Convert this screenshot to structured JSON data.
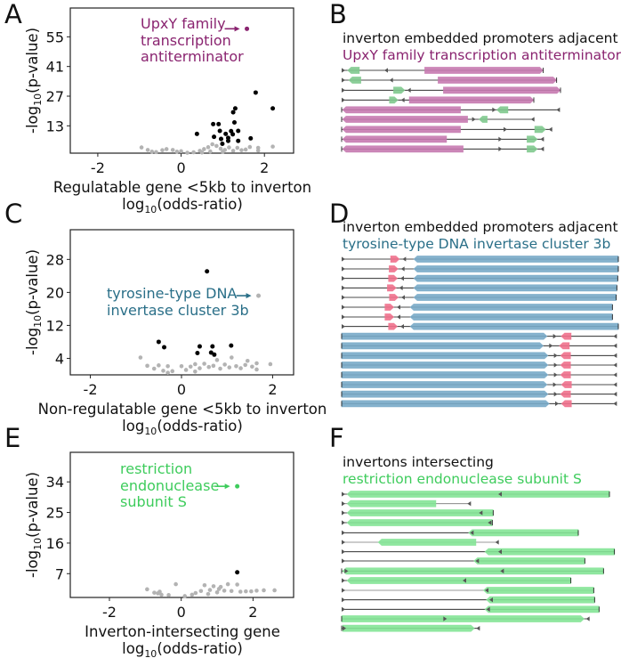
{
  "panel_labels": {
    "A": "A",
    "B": "B",
    "C": "C",
    "D": "D",
    "E": "E",
    "F": "F"
  },
  "colors": {
    "significant": "#000000",
    "nonsignificant": "#b3b3b3",
    "upxy": "#8a2470",
    "invertase": "#2a6f88",
    "restriction": "#3ecc5c",
    "pink_gene": "#c67ab0",
    "blue_gene": "#78aac8",
    "red_gene": "#f0708c",
    "green_gene": "#80c98e",
    "bright_green_gene": "#84e496",
    "promoter": "#555555"
  },
  "chart_data": [
    {
      "panel": "A",
      "type": "scatter",
      "ylabel": [
        "-log",
        "10",
        "(p-value)"
      ],
      "xlabel": [
        "Regulatable gene <5kb to inverton"
      ],
      "xlabel2": [
        "log",
        "10",
        "(odds-ratio)"
      ],
      "xlim": [
        -2.66,
        2.7
      ],
      "ylim": [
        0.1,
        68.6
      ],
      "xticks": [
        -2,
        0,
        2
      ],
      "yticks": [
        13,
        27,
        41,
        55
      ],
      "grid": false,
      "series": [
        {
          "color": "#000000",
          "points": [
            [
              2.2,
              21.2
            ],
            [
              1.79,
              28.7
            ],
            [
              1.3,
              21.2
            ],
            [
              1.25,
              19.4
            ],
            [
              1.28,
              14.6
            ],
            [
              0.77,
              13.8
            ],
            [
              0.9,
              13.8
            ],
            [
              0.38,
              9.2
            ],
            [
              0.93,
              10.6
            ],
            [
              1.07,
              9.2
            ],
            [
              1.2,
              10.5
            ],
            [
              1.37,
              10.6
            ],
            [
              0.79,
              7.8
            ],
            [
              0.96,
              6.8
            ],
            [
              1.13,
              7.3
            ],
            [
              1.13,
              5.9
            ],
            [
              0.99,
              4.5
            ],
            [
              1.37,
              5.9
            ],
            [
              1.67,
              7.1
            ],
            [
              1.24,
              9.0
            ]
          ]
        },
        {
          "color": "#b3b3b3",
          "points": [
            [
              -0.95,
              2.8
            ],
            [
              -0.8,
              1.6
            ],
            [
              -0.7,
              0.8
            ],
            [
              -0.6,
              0.6
            ],
            [
              -0.45,
              1.5
            ],
            [
              -0.35,
              2.0
            ],
            [
              -0.2,
              1.6
            ],
            [
              -0.1,
              0.8
            ],
            [
              0.0,
              1.0
            ],
            [
              0.15,
              0.3
            ],
            [
              0.3,
              0.5
            ],
            [
              0.45,
              1.2
            ],
            [
              0.55,
              2.0
            ],
            [
              0.65,
              2.9
            ],
            [
              0.75,
              4.3
            ],
            [
              0.85,
              3.5
            ],
            [
              0.95,
              2.2
            ],
            [
              1.05,
              1.6
            ],
            [
              1.15,
              2.8
            ],
            [
              1.25,
              1.2
            ],
            [
              1.35,
              2.6
            ],
            [
              1.45,
              1.5
            ],
            [
              1.55,
              1.8
            ],
            [
              1.65,
              3.0
            ],
            [
              1.85,
              2.6
            ],
            [
              1.85,
              1.3
            ],
            [
              2.2,
              3.2
            ],
            [
              0.5,
              0.4
            ],
            [
              0.7,
              0.9
            ],
            [
              1.0,
              0.7
            ]
          ]
        },
        {
          "color": "#8a2470",
          "points": [
            [
              1.58,
              58.8
            ]
          ]
        }
      ],
      "annotation": {
        "lines": [
          "UpxY family",
          "transcription",
          "antiterminator"
        ],
        "color": "#8a2470",
        "point": [
          1.58,
          58.8
        ]
      }
    },
    {
      "panel": "C",
      "type": "scatter",
      "ylabel": [
        "-log",
        "10",
        "(p-value)"
      ],
      "xlabel": [
        "Non-regulatable gene <5kb to inverton"
      ],
      "xlabel2": [
        "log",
        "10",
        "(odds-ratio)"
      ],
      "xlim": [
        -2.44,
        2.46
      ],
      "ylim": [
        0,
        35.2
      ],
      "xticks": [
        -2,
        0,
        2
      ],
      "yticks": [
        4,
        12,
        20,
        28
      ],
      "grid": false,
      "series": [
        {
          "color": "#000000",
          "points": [
            [
              0.56,
              25.1
            ],
            [
              -0.5,
              8.0
            ],
            [
              -0.38,
              6.7
            ],
            [
              0.4,
              6.9
            ],
            [
              0.35,
              5.3
            ],
            [
              0.68,
              6.9
            ],
            [
              0.65,
              5.4
            ],
            [
              0.72,
              4.9
            ],
            [
              1.09,
              7.1
            ]
          ]
        },
        {
          "color": "#b3b3b3",
          "points": [
            [
              -0.9,
              4.2
            ],
            [
              -0.75,
              2.2
            ],
            [
              -0.6,
              1.5
            ],
            [
              -0.5,
              2.3
            ],
            [
              -0.4,
              1.0
            ],
            [
              -0.3,
              2.1
            ],
            [
              -0.2,
              0.9
            ],
            [
              0.0,
              2.1
            ],
            [
              0.1,
              1.2
            ],
            [
              0.2,
              2.0
            ],
            [
              0.3,
              2.6
            ],
            [
              0.4,
              1.6
            ],
            [
              0.5,
              2.7
            ],
            [
              0.6,
              1.9
            ],
            [
              0.7,
              2.2
            ],
            [
              0.78,
              3.6
            ],
            [
              0.85,
              1.5
            ],
            [
              0.95,
              2.5
            ],
            [
              1.05,
              1.8
            ],
            [
              1.1,
              4.2
            ],
            [
              1.2,
              2.1
            ],
            [
              1.3,
              1.6
            ],
            [
              1.4,
              2.4
            ],
            [
              1.45,
              3.4
            ],
            [
              1.55,
              2.0
            ],
            [
              1.65,
              1.3
            ],
            [
              1.65,
              2.8
            ],
            [
              1.95,
              2.6
            ],
            [
              -0.3,
              0.5
            ],
            [
              0.3,
              0.8
            ]
          ]
        },
        {
          "color": "#b3b3b3",
          "points": [
            [
              1.69,
              19.2
            ]
          ]
        }
      ],
      "annotation": {
        "lines": [
          "tyrosine-type DNA",
          "invertase cluster 3b"
        ],
        "color": "#2a6f88",
        "point": [
          1.69,
          19.2
        ]
      }
    },
    {
      "panel": "E",
      "type": "scatter",
      "ylabel": [
        "-log",
        "10",
        "(p-value)"
      ],
      "xlabel": [
        "Inverton-intersecting gene"
      ],
      "xlabel2": [
        "log",
        "10",
        "(odds-ratio)"
      ],
      "xlim": [
        -3.09,
        3.13
      ],
      "ylim": [
        0,
        42.7
      ],
      "xticks": [
        -2,
        0,
        2
      ],
      "yticks": [
        7,
        16,
        25,
        34
      ],
      "grid": false,
      "series": [
        {
          "color": "#000000",
          "points": [
            [
              1.56,
              7.4
            ]
          ]
        },
        {
          "color": "#b3b3b3",
          "points": [
            [
              -0.95,
              2.4
            ],
            [
              -0.75,
              1.4
            ],
            [
              -0.65,
              1.2
            ],
            [
              -0.6,
              1.7
            ],
            [
              -0.55,
              0.8
            ],
            [
              -0.35,
              0.7
            ],
            [
              -0.15,
              3.9
            ],
            [
              0.1,
              0.4
            ],
            [
              0.4,
              1.3
            ],
            [
              0.55,
              1.9
            ],
            [
              0.65,
              3.6
            ],
            [
              0.8,
              2.2
            ],
            [
              0.9,
              3.3
            ],
            [
              1.05,
              2.5
            ],
            [
              1.1,
              3.1
            ],
            [
              1.2,
              2.0
            ],
            [
              1.3,
              3.9
            ],
            [
              1.4,
              1.9
            ],
            [
              1.56,
              3.8
            ],
            [
              1.65,
              1.7
            ],
            [
              1.8,
              1.8
            ],
            [
              1.95,
              1.8
            ],
            [
              2.1,
              2.0
            ],
            [
              2.3,
              2.1
            ],
            [
              2.6,
              2.1
            ],
            [
              0.3,
              0.8
            ],
            [
              0.75,
              1.0
            ],
            [
              1.0,
              1.5
            ]
          ]
        },
        {
          "color": "#3ecc5c",
          "points": [
            [
              1.56,
              32.7
            ]
          ]
        }
      ],
      "annotation": {
        "lines": [
          "restriction",
          "endonuclease",
          "subunit S"
        ],
        "color": "#3ecc5c",
        "point": [
          1.56,
          32.7
        ]
      }
    }
  ],
  "diagrams": {
    "B": {
      "title": "inverton embedded promoters adjacent",
      "subtitle": "UpxY family transcription antiterminator",
      "subtitle_color": "#8a2470"
    },
    "D": {
      "title": "inverton embedded promoters adjacent",
      "subtitle": "tyrosine-type DNA invertase cluster 3b",
      "subtitle_color": "#2a6f88"
    },
    "F": {
      "title": "invertons intersecting",
      "subtitle": "restriction endonuclease subunit S",
      "subtitle_color": "#3ecc5c"
    }
  }
}
